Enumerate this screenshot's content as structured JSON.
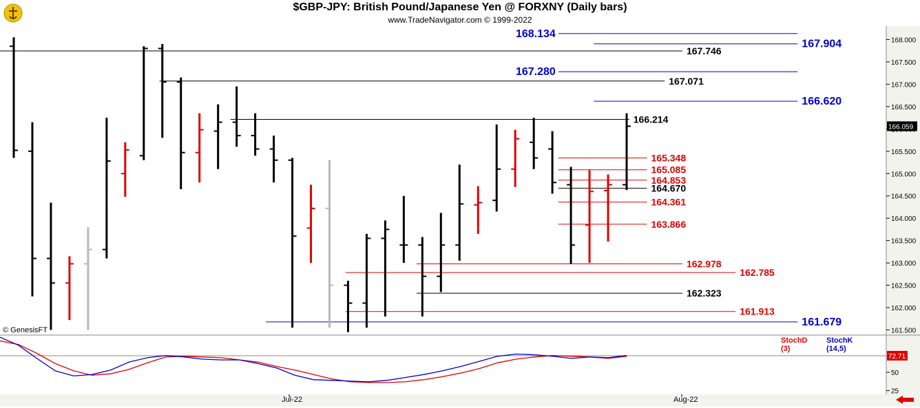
{
  "header": {
    "title": "$GBP-JPY:  British Pound/Japanese Yen @ FORXNY  (Daily bars)",
    "subtitle": "www.TradeNavigator.com © 1999-2022",
    "watermark": "© GenesisFT"
  },
  "colors": {
    "up_bar": "#000000",
    "down_bar": "#e00000",
    "neutral_bar": "#b8b8b8",
    "blue": "#0000cc",
    "red": "#e00000",
    "panel_bg": "#f3f3ee"
  },
  "icons": {
    "logo": "genesis-logo-icon",
    "nav": "back-arrow-icon"
  },
  "chart_data": [
    {
      "type": "ohlc",
      "title": "$GBP-JPY:  British Pound/Japanese Yen @ FORXNY  (Daily bars)",
      "x_labels": [
        "Jul-22",
        "Aug-22"
      ],
      "ylim": [
        161.4,
        168.3
      ],
      "yticks": [
        161.5,
        162.0,
        162.5,
        163.0,
        163.5,
        164.0,
        164.5,
        165.0,
        165.5,
        166.0,
        166.5,
        167.0,
        167.5,
        168.0
      ],
      "ytick_labels": [
        "161.500",
        "162.000",
        "162.500",
        "163.000",
        "163.500",
        "164.000",
        "164.500",
        "165.000",
        "165.500",
        "166.000",
        "166.500",
        "167.000",
        "167.500",
        "168.000"
      ],
      "last_price_label": "166.059",
      "bars": [
        {
          "o": 167.85,
          "h": 168.05,
          "l": 165.35,
          "c": 165.52,
          "color": "up"
        },
        {
          "o": 165.5,
          "h": 166.15,
          "l": 162.25,
          "c": 163.1,
          "color": "up"
        },
        {
          "o": 163.1,
          "h": 164.35,
          "l": 161.5,
          "c": 162.55,
          "color": "up"
        },
        {
          "o": 162.55,
          "h": 163.15,
          "l": 161.72,
          "c": 162.98,
          "color": "down"
        },
        {
          "o": 162.98,
          "h": 163.8,
          "l": 161.5,
          "c": 163.3,
          "color": "neutral"
        },
        {
          "o": 163.3,
          "h": 166.25,
          "l": 163.1,
          "c": 165.28,
          "color": "up"
        },
        {
          "o": 165.0,
          "h": 165.7,
          "l": 164.48,
          "c": 165.53,
          "color": "down"
        },
        {
          "o": 165.4,
          "h": 167.85,
          "l": 165.3,
          "c": 167.8,
          "color": "up"
        },
        {
          "o": 167.8,
          "h": 167.9,
          "l": 165.8,
          "c": 167.05,
          "color": "up"
        },
        {
          "o": 167.05,
          "h": 167.15,
          "l": 164.65,
          "c": 165.47,
          "color": "up"
        },
        {
          "o": 165.47,
          "h": 166.35,
          "l": 164.8,
          "c": 165.98,
          "color": "down"
        },
        {
          "o": 165.95,
          "h": 166.55,
          "l": 165.1,
          "c": 166.15,
          "color": "up"
        },
        {
          "o": 166.15,
          "h": 166.95,
          "l": 165.6,
          "c": 165.85,
          "color": "up"
        },
        {
          "o": 165.85,
          "h": 166.35,
          "l": 165.4,
          "c": 165.55,
          "color": "up"
        },
        {
          "o": 165.55,
          "h": 165.85,
          "l": 164.8,
          "c": 165.3,
          "color": "up"
        },
        {
          "o": 165.3,
          "h": 165.35,
          "l": 161.55,
          "c": 163.6,
          "color": "up"
        },
        {
          "o": 163.78,
          "h": 164.75,
          "l": 163.0,
          "c": 164.22,
          "color": "down"
        },
        {
          "o": 164.22,
          "h": 165.3,
          "l": 161.55,
          "c": 162.5,
          "color": "neutral"
        },
        {
          "o": 162.5,
          "h": 162.6,
          "l": 161.45,
          "c": 162.1,
          "color": "up"
        },
        {
          "o": 162.1,
          "h": 163.65,
          "l": 161.55,
          "c": 163.55,
          "color": "up"
        },
        {
          "o": 163.55,
          "h": 163.95,
          "l": 161.8,
          "c": 163.75,
          "color": "up"
        },
        {
          "o": 163.4,
          "h": 164.5,
          "l": 163.0,
          "c": 163.4,
          "color": "up"
        },
        {
          "o": 163.4,
          "h": 163.58,
          "l": 161.8,
          "c": 162.7,
          "color": "up"
        },
        {
          "o": 162.7,
          "h": 164.12,
          "l": 162.35,
          "c": 163.4,
          "color": "up"
        },
        {
          "o": 163.4,
          "h": 165.2,
          "l": 163.05,
          "c": 164.32,
          "color": "up"
        },
        {
          "o": 164.3,
          "h": 164.72,
          "l": 163.65,
          "c": 164.35,
          "color": "down"
        },
        {
          "o": 164.4,
          "h": 166.1,
          "l": 164.15,
          "c": 165.1,
          "color": "up"
        },
        {
          "o": 165.1,
          "h": 165.98,
          "l": 164.7,
          "c": 165.78,
          "color": "down"
        },
        {
          "o": 165.7,
          "h": 166.25,
          "l": 165.1,
          "c": 165.35,
          "color": "up"
        },
        {
          "o": 165.55,
          "h": 165.95,
          "l": 164.55,
          "c": 164.8,
          "color": "up"
        },
        {
          "o": 164.75,
          "h": 165.15,
          "l": 162.98,
          "c": 163.4,
          "color": "up"
        },
        {
          "o": 163.85,
          "h": 165.08,
          "l": 163.0,
          "c": 164.6,
          "color": "down"
        },
        {
          "o": 164.62,
          "h": 164.98,
          "l": 163.48,
          "c": 164.75,
          "color": "down"
        },
        {
          "o": 164.75,
          "h": 166.35,
          "l": 164.63,
          "c": 166.06,
          "color": "up"
        }
      ],
      "levels": [
        {
          "value": 168.134,
          "label": "168.134",
          "color": "blue",
          "label_side": "left",
          "x_from": 0.63,
          "x_to": 0.9
        },
        {
          "value": 167.904,
          "label": "167.904",
          "color": "blue",
          "label_side": "right",
          "x_from": 0.67,
          "x_to": 0.9
        },
        {
          "value": 167.746,
          "label": "167.746",
          "color": "black",
          "label_side": "right",
          "x_from": 0.0,
          "x_to": 0.77
        },
        {
          "value": 167.28,
          "label": "167.280",
          "color": "blue",
          "label_side": "left",
          "x_from": 0.63,
          "x_to": 0.9
        },
        {
          "value": 167.071,
          "label": "167.071",
          "color": "black",
          "label_side": "right",
          "x_from": 0.18,
          "x_to": 0.75
        },
        {
          "value": 166.62,
          "label": "166.620",
          "color": "blue",
          "label_side": "right",
          "x_from": 0.67,
          "x_to": 0.9
        },
        {
          "value": 166.214,
          "label": "166.214",
          "color": "black",
          "label_side": "right",
          "x_from": 0.26,
          "x_to": 0.71
        },
        {
          "value": 165.348,
          "label": "165.348",
          "color": "red",
          "label_side": "right",
          "x_from": 0.63,
          "x_to": 0.73
        },
        {
          "value": 165.085,
          "label": "165.085",
          "color": "red",
          "label_side": "right",
          "x_from": 0.63,
          "x_to": 0.73
        },
        {
          "value": 164.853,
          "label": "164.853",
          "color": "red",
          "label_side": "right",
          "x_from": 0.63,
          "x_to": 0.73
        },
        {
          "value": 164.67,
          "label": "164.670",
          "color": "black",
          "label_side": "right",
          "x_from": 0.63,
          "x_to": 0.73
        },
        {
          "value": 164.361,
          "label": "164.361",
          "color": "red",
          "label_side": "right",
          "x_from": 0.63,
          "x_to": 0.73
        },
        {
          "value": 163.866,
          "label": "163.866",
          "color": "red",
          "label_side": "right",
          "x_from": 0.63,
          "x_to": 0.73
        },
        {
          "value": 162.978,
          "label": "162.978",
          "color": "red",
          "label_side": "right",
          "x_from": 0.47,
          "x_to": 0.77
        },
        {
          "value": 162.785,
          "label": "162.785",
          "color": "red",
          "label_side": "right",
          "x_from": 0.39,
          "x_to": 0.83
        },
        {
          "value": 162.323,
          "label": "162.323",
          "color": "black",
          "label_side": "right",
          "x_from": 0.47,
          "x_to": 0.77
        },
        {
          "value": 161.913,
          "label": "161.913",
          "color": "red",
          "label_side": "right",
          "x_from": 0.39,
          "x_to": 0.83
        },
        {
          "value": 161.679,
          "label": "161.679",
          "color": "blue",
          "label_side": "right",
          "x_from": 0.3,
          "x_to": 0.9
        }
      ]
    },
    {
      "type": "line",
      "title": "",
      "legend": [
        "StochD (3)",
        "StochK (14,5)"
      ],
      "ylim": [
        20,
        100
      ],
      "yticks": [
        25,
        50
      ],
      "last_value_label": "72.71",
      "reference_line": 72.71,
      "series": [
        {
          "name": "StochD (3)",
          "color": "red",
          "values": [
            93,
            88,
            76,
            62,
            52,
            46,
            48,
            54,
            63,
            71,
            72,
            71,
            70,
            67,
            64,
            58,
            53,
            47,
            41,
            37,
            36,
            36,
            37,
            40,
            44,
            49,
            55,
            63,
            68,
            71,
            73,
            72,
            71,
            69,
            72
          ]
        },
        {
          "name": "StochK (14,5)",
          "color": "blue",
          "values": [
            98,
            87,
            69,
            52,
            45,
            47,
            53,
            64,
            70,
            73,
            71,
            68,
            67,
            67,
            62,
            56,
            46,
            40,
            39,
            38,
            37,
            39,
            43,
            47,
            52,
            58,
            65,
            72,
            75,
            74,
            72,
            69,
            71,
            70,
            73
          ]
        }
      ]
    }
  ]
}
